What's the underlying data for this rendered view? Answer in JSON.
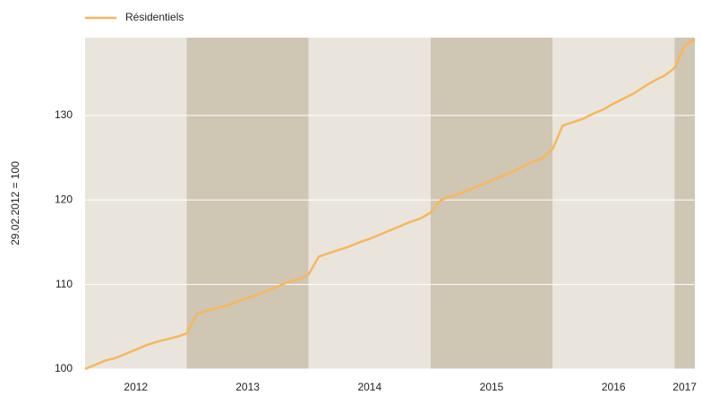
{
  "chart_data": {
    "type": "line",
    "y_label": "29.02.2012 = 100",
    "x": [
      2012.1667,
      2012.25,
      2012.3333,
      2012.4167,
      2012.5,
      2012.5833,
      2012.6667,
      2012.75,
      2012.8333,
      2012.9167,
      2013.0,
      2013.0833,
      2013.1667,
      2013.25,
      2013.3333,
      2013.4167,
      2013.5,
      2013.5833,
      2013.6667,
      2013.75,
      2013.8333,
      2013.9167,
      2014.0,
      2014.0833,
      2014.1667,
      2014.25,
      2014.3333,
      2014.4167,
      2014.5,
      2014.5833,
      2014.6667,
      2014.75,
      2014.8333,
      2014.9167,
      2015.0,
      2015.0833,
      2015.1667,
      2015.25,
      2015.3333,
      2015.4167,
      2015.5,
      2015.5833,
      2015.6667,
      2015.75,
      2015.8333,
      2015.9167,
      2016.0,
      2016.0833,
      2016.1667,
      2016.25,
      2016.3333,
      2016.4167,
      2016.5,
      2016.5833,
      2016.6667,
      2016.75,
      2016.8333,
      2016.9167,
      2017.0,
      2017.0833,
      2017.1667
    ],
    "series": [
      {
        "name": "Résidentiels",
        "color": "#f9b65a",
        "values": [
          100,
          100.5,
          101,
          101.3,
          101.8,
          102.3,
          102.8,
          103.2,
          103.5,
          103.8,
          104.2,
          106.5,
          106.9,
          107.2,
          107.5,
          108.0,
          108.4,
          108.8,
          109.3,
          109.8,
          110.3,
          110.6,
          111.2,
          113.3,
          113.7,
          114.1,
          114.5,
          115.0,
          115.4,
          115.9,
          116.4,
          116.9,
          117.4,
          117.8,
          118.5,
          120.0,
          120.4,
          120.8,
          121.3,
          121.8,
          122.3,
          122.8,
          123.3,
          123.9,
          124.5,
          124.9,
          126.0,
          128.8,
          129.2,
          129.6,
          130.2,
          130.7,
          131.4,
          132.0,
          132.6,
          133.4,
          134.1,
          134.7,
          135.6,
          138.3,
          139.0
        ]
      }
    ],
    "xlim": [
      2012.1667,
      2017.1667
    ],
    "xticks": [
      2012,
      2013,
      2014,
      2015,
      2016,
      2017
    ],
    "ylim": [
      100,
      139.2
    ],
    "yticks": [
      100,
      110,
      120,
      130
    ],
    "grid": true,
    "legend": "top-left"
  }
}
